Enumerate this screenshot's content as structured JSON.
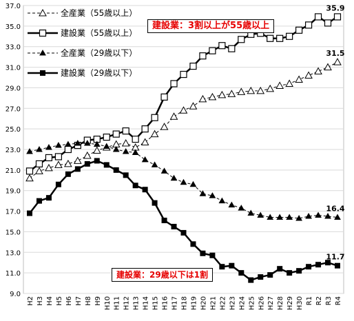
{
  "chart_data": {
    "type": "line",
    "categories": [
      "H2",
      "H3",
      "H4",
      "H5",
      "H6",
      "H7",
      "H8",
      "H9",
      "H10",
      "H11",
      "H12",
      "H13",
      "H14",
      "H15",
      "H16",
      "H17",
      "H18",
      "H19",
      "H20",
      "H21",
      "H22",
      "H23",
      "H24",
      "H25",
      "H26",
      "H27",
      "H28",
      "H29",
      "H30",
      "R1",
      "R2",
      "R3",
      "R4"
    ],
    "ylim": [
      9.0,
      37.0
    ],
    "yticks": [
      "9.0",
      "11.0",
      "13.0",
      "15.0",
      "17.0",
      "19.0",
      "21.0",
      "23.0",
      "25.0",
      "27.0",
      "29.0",
      "31.0",
      "33.0",
      "35.0",
      "37.0"
    ],
    "grid": true,
    "legend_position": "top-left",
    "series": [
      {
        "name": "全産業（55歳以上）",
        "marker": "open-triangle",
        "line": "dashed",
        "values": [
          20.2,
          20.9,
          21.2,
          21.5,
          21.6,
          21.9,
          22.4,
          22.9,
          23.2,
          23.5,
          23.6,
          23.2,
          23.7,
          24.5,
          25.2,
          26.2,
          26.8,
          27.2,
          27.9,
          28.1,
          28.3,
          28.4,
          28.6,
          28.7,
          28.7,
          28.9,
          29.2,
          29.4,
          29.8,
          30.2,
          30.6,
          31.0,
          31.5
        ]
      },
      {
        "name": "建設業（55歳以上）",
        "marker": "open-square",
        "line": "solid",
        "values": [
          20.9,
          21.6,
          22.2,
          22.3,
          23.0,
          23.4,
          23.9,
          24.0,
          24.2,
          24.5,
          24.8,
          24.0,
          25.0,
          26.1,
          28.1,
          29.4,
          30.3,
          31.1,
          32.1,
          32.6,
          33.1,
          32.8,
          33.7,
          34.2,
          34.3,
          33.8,
          33.8,
          34.0,
          34.6,
          35.1,
          35.9,
          35.3,
          35.9
        ]
      },
      {
        "name": "全産業（29歳以下）",
        "marker": "filled-triangle",
        "line": "dashed",
        "values": [
          22.8,
          23.0,
          23.2,
          23.4,
          23.5,
          23.6,
          23.6,
          23.5,
          23.3,
          23.0,
          22.8,
          22.7,
          22.0,
          21.5,
          20.9,
          20.2,
          19.8,
          19.6,
          18.7,
          18.5,
          18.0,
          17.6,
          17.3,
          16.8,
          16.6,
          16.4,
          16.4,
          16.4,
          16.3,
          16.5,
          16.6,
          16.5,
          16.4
        ]
      },
      {
        "name": "建設業（29歳以下）",
        "marker": "filled-square",
        "line": "solid",
        "values": [
          16.8,
          18.0,
          18.3,
          19.6,
          20.6,
          21.1,
          21.6,
          21.9,
          21.5,
          21.0,
          20.5,
          19.5,
          19.1,
          17.8,
          16.1,
          15.5,
          14.9,
          13.8,
          12.9,
          12.7,
          11.6,
          11.7,
          11.0,
          10.3,
          10.6,
          10.8,
          11.4,
          11.0,
          11.2,
          11.6,
          11.8,
          12.0,
          11.7
        ]
      }
    ],
    "value_labels": {
      "s0": "31.5",
      "s1": "35.9",
      "s2": "16.4",
      "s3": "11.7"
    },
    "annotations": {
      "top": "建設業：3割以上が55歳以上",
      "bottom": "建設業：29歳以下は1割"
    }
  },
  "colors": {
    "line": "#000000",
    "grid": "#d9d9d9",
    "annotation_text": "#e60000"
  }
}
